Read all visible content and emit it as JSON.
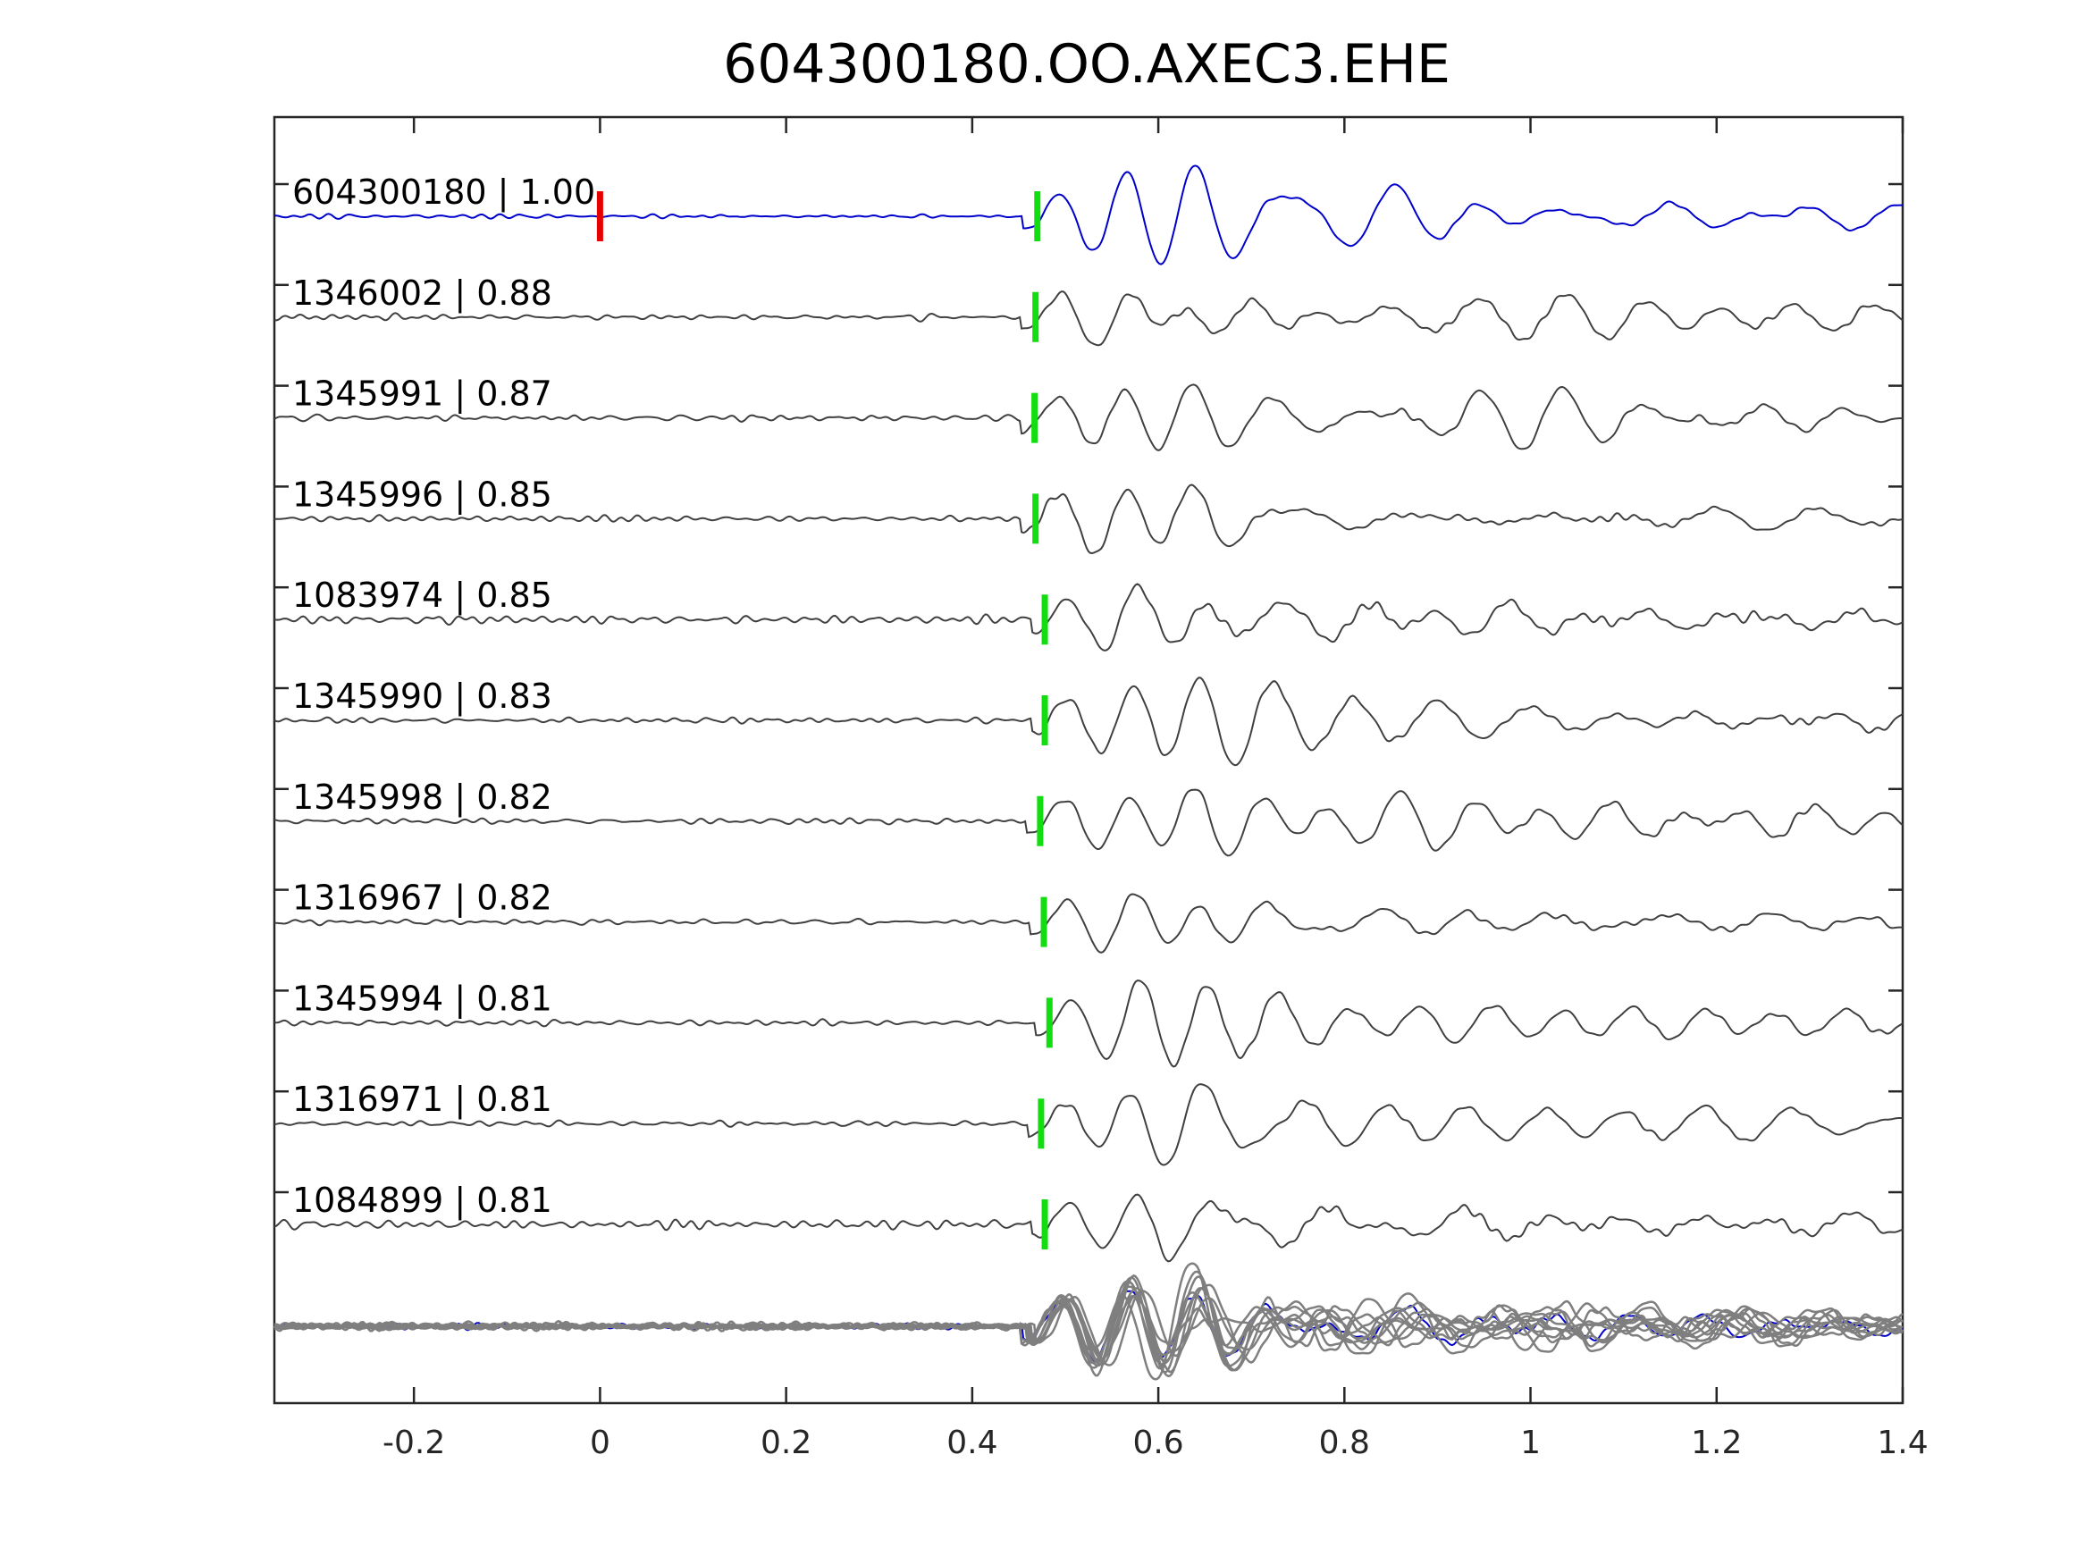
{
  "chart_data": {
    "type": "line",
    "title": "604300180.OO.AXEC3.EHE",
    "xlabel": "",
    "ylabel": "",
    "xlim": [
      -0.35,
      1.4
    ],
    "xticks": [
      -0.2,
      0,
      0.2,
      0.4,
      0.6,
      0.8,
      1,
      1.2,
      1.4
    ],
    "xtick_labels": [
      "-0.2",
      "0",
      "0.2",
      "0.4",
      "0.6",
      "0.8",
      "1",
      "1.2",
      "1.4"
    ],
    "grid": false,
    "legend": "none",
    "colors": {
      "template": "#0000cc",
      "neighbors": "#404040",
      "stack": "#7f7f7f",
      "reference_pick": "#e60000",
      "picks": "#11dd11"
    },
    "reference_pick_time": 0.0,
    "series": [
      {
        "label": "604300180 | 1.00",
        "pick_time": 0.47,
        "role": "template"
      },
      {
        "label": "1346002 | 0.88",
        "pick_time": 0.468
      },
      {
        "label": "1345991 | 0.87",
        "pick_time": 0.467
      },
      {
        "label": "1345996 | 0.85",
        "pick_time": 0.468
      },
      {
        "label": "1083974 | 0.85",
        "pick_time": 0.478
      },
      {
        "label": "1345990 | 0.83",
        "pick_time": 0.478
      },
      {
        "label": "1345998 | 0.82",
        "pick_time": 0.473
      },
      {
        "label": "1316967 | 0.82",
        "pick_time": 0.477
      },
      {
        "label": "1345994 | 0.81",
        "pick_time": 0.483
      },
      {
        "label": "1316971 | 0.81",
        "pick_time": 0.474
      },
      {
        "label": "1084899 | 0.81",
        "pick_time": 0.478
      }
    ]
  }
}
